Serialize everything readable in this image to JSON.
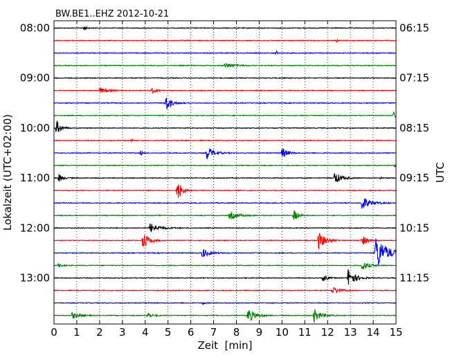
{
  "chart_data": {
    "type": "line",
    "title": "BW.BE1..EHZ 2012-10-21",
    "xlabel": "Zeit  [min]",
    "ylabel_left": "Lokalzeit (UTC+02:00)",
    "ylabel_right": "UTC",
    "xlim": [
      0,
      15
    ],
    "x_ticks": [
      "0",
      "1",
      "2",
      "3",
      "4",
      "5",
      "6",
      "7",
      "8",
      "9",
      "10",
      "11",
      "12",
      "13",
      "14",
      "15"
    ],
    "left_tick_labels": [
      "08:00",
      "09:00",
      "10:00",
      "11:00",
      "12:00",
      "13:00"
    ],
    "right_tick_labels": [
      "06:15",
      "07:15",
      "08:15",
      "09:15",
      "10:15",
      "11:15"
    ],
    "grid": "vertical dotted",
    "colors": [
      "#000000",
      "#ff0000",
      "#0000ff",
      "#008000"
    ],
    "traces": [
      {
        "start": "08:00",
        "color": "#000000",
        "events": [
          {
            "t": 1.3,
            "amp": 5,
            "w": 0.15
          }
        ]
      },
      {
        "start": "08:15",
        "color": "#ff0000",
        "events": [
          {
            "t": 12.4,
            "amp": 2,
            "w": 0.1
          }
        ]
      },
      {
        "start": "08:30",
        "color": "#0000ff",
        "events": [
          {
            "t": 9.75,
            "amp": 6,
            "w": 0.05
          }
        ]
      },
      {
        "start": "08:45",
        "color": "#008000",
        "events": [
          {
            "t": 7.5,
            "amp": 4,
            "w": 0.7
          }
        ]
      },
      {
        "start": "09:00",
        "color": "#000000",
        "events": []
      },
      {
        "start": "09:15",
        "color": "#ff0000",
        "events": [
          {
            "t": 2.0,
            "amp": 4,
            "w": 0.6
          },
          {
            "t": 4.3,
            "amp": 4,
            "w": 0.3
          }
        ]
      },
      {
        "start": "09:30",
        "color": "#0000ff",
        "events": [
          {
            "t": 4.9,
            "amp": 12,
            "w": 0.4
          }
        ]
      },
      {
        "start": "09:45",
        "color": "#008000",
        "events": [
          {
            "t": 14.9,
            "amp": 5,
            "w": 0.15
          }
        ]
      },
      {
        "start": "10:00",
        "color": "#000000",
        "events": [
          {
            "t": 0.1,
            "amp": 12,
            "w": 0.3
          }
        ]
      },
      {
        "start": "10:15",
        "color": "#ff0000",
        "events": [
          {
            "t": 3.4,
            "amp": 3,
            "w": 0.1
          }
        ]
      },
      {
        "start": "10:30",
        "color": "#0000ff",
        "events": [
          {
            "t": 3.8,
            "amp": 5,
            "w": 0.1
          },
          {
            "t": 6.7,
            "amp": 10,
            "w": 0.5
          },
          {
            "t": 10.0,
            "amp": 8,
            "w": 0.4
          }
        ]
      },
      {
        "start": "10:45",
        "color": "#008000",
        "events": [
          {
            "t": 14.95,
            "amp": 3,
            "w": 0.1
          }
        ]
      },
      {
        "start": "11:00",
        "color": "#000000",
        "events": [
          {
            "t": 0.2,
            "amp": 6,
            "w": 0.3
          },
          {
            "t": 12.3,
            "amp": 9,
            "w": 0.5
          },
          {
            "t": 14.3,
            "amp": 2,
            "w": 0.1
          }
        ]
      },
      {
        "start": "11:15",
        "color": "#ff0000",
        "events": [
          {
            "t": 5.4,
            "amp": 18,
            "w": 0.3
          }
        ]
      },
      {
        "start": "11:30",
        "color": "#0000ff",
        "events": [
          {
            "t": 13.5,
            "amp": 10,
            "w": 0.6
          }
        ]
      },
      {
        "start": "11:45",
        "color": "#008000",
        "events": [
          {
            "t": 7.7,
            "amp": 6,
            "w": 0.6
          },
          {
            "t": 10.5,
            "amp": 9,
            "w": 0.3
          }
        ]
      },
      {
        "start": "12:00",
        "color": "#000000",
        "events": [
          {
            "t": 4.2,
            "amp": 7,
            "w": 0.7
          }
        ]
      },
      {
        "start": "12:15",
        "color": "#ff0000",
        "events": [
          {
            "t": 3.9,
            "amp": 14,
            "w": 0.4
          },
          {
            "t": 11.6,
            "amp": 13,
            "w": 0.5
          },
          {
            "t": 13.5,
            "amp": 8,
            "w": 0.4
          }
        ]
      },
      {
        "start": "12:30",
        "color": "#0000ff",
        "events": [
          {
            "t": 6.5,
            "amp": 7,
            "w": 0.5
          },
          {
            "t": 14.1,
            "amp": 26,
            "w": 0.8
          }
        ]
      },
      {
        "start": "12:45",
        "color": "#008000",
        "events": [
          {
            "t": 0.2,
            "amp": 3,
            "w": 0.3
          },
          {
            "t": 13.5,
            "amp": 7,
            "w": 0.5
          }
        ]
      },
      {
        "start": "13:00",
        "color": "#000000",
        "events": [
          {
            "t": 11.8,
            "amp": 6,
            "w": 0.3
          },
          {
            "t": 12.9,
            "amp": 14,
            "w": 0.5
          }
        ]
      },
      {
        "start": "13:15",
        "color": "#ff0000",
        "events": [
          {
            "t": 12.2,
            "amp": 6,
            "w": 0.5
          }
        ]
      },
      {
        "start": "13:30",
        "color": "#0000ff",
        "events": [
          {
            "t": 6.5,
            "amp": 2,
            "w": 0.2
          }
        ]
      },
      {
        "start": "13:45",
        "color": "#008000",
        "events": [
          {
            "t": 0.8,
            "amp": 5,
            "w": 0.5
          },
          {
            "t": 4.1,
            "amp": 5,
            "w": 0.3
          },
          {
            "t": 8.5,
            "amp": 11,
            "w": 0.5
          },
          {
            "t": 11.4,
            "amp": 10,
            "w": 0.5
          }
        ]
      }
    ]
  }
}
